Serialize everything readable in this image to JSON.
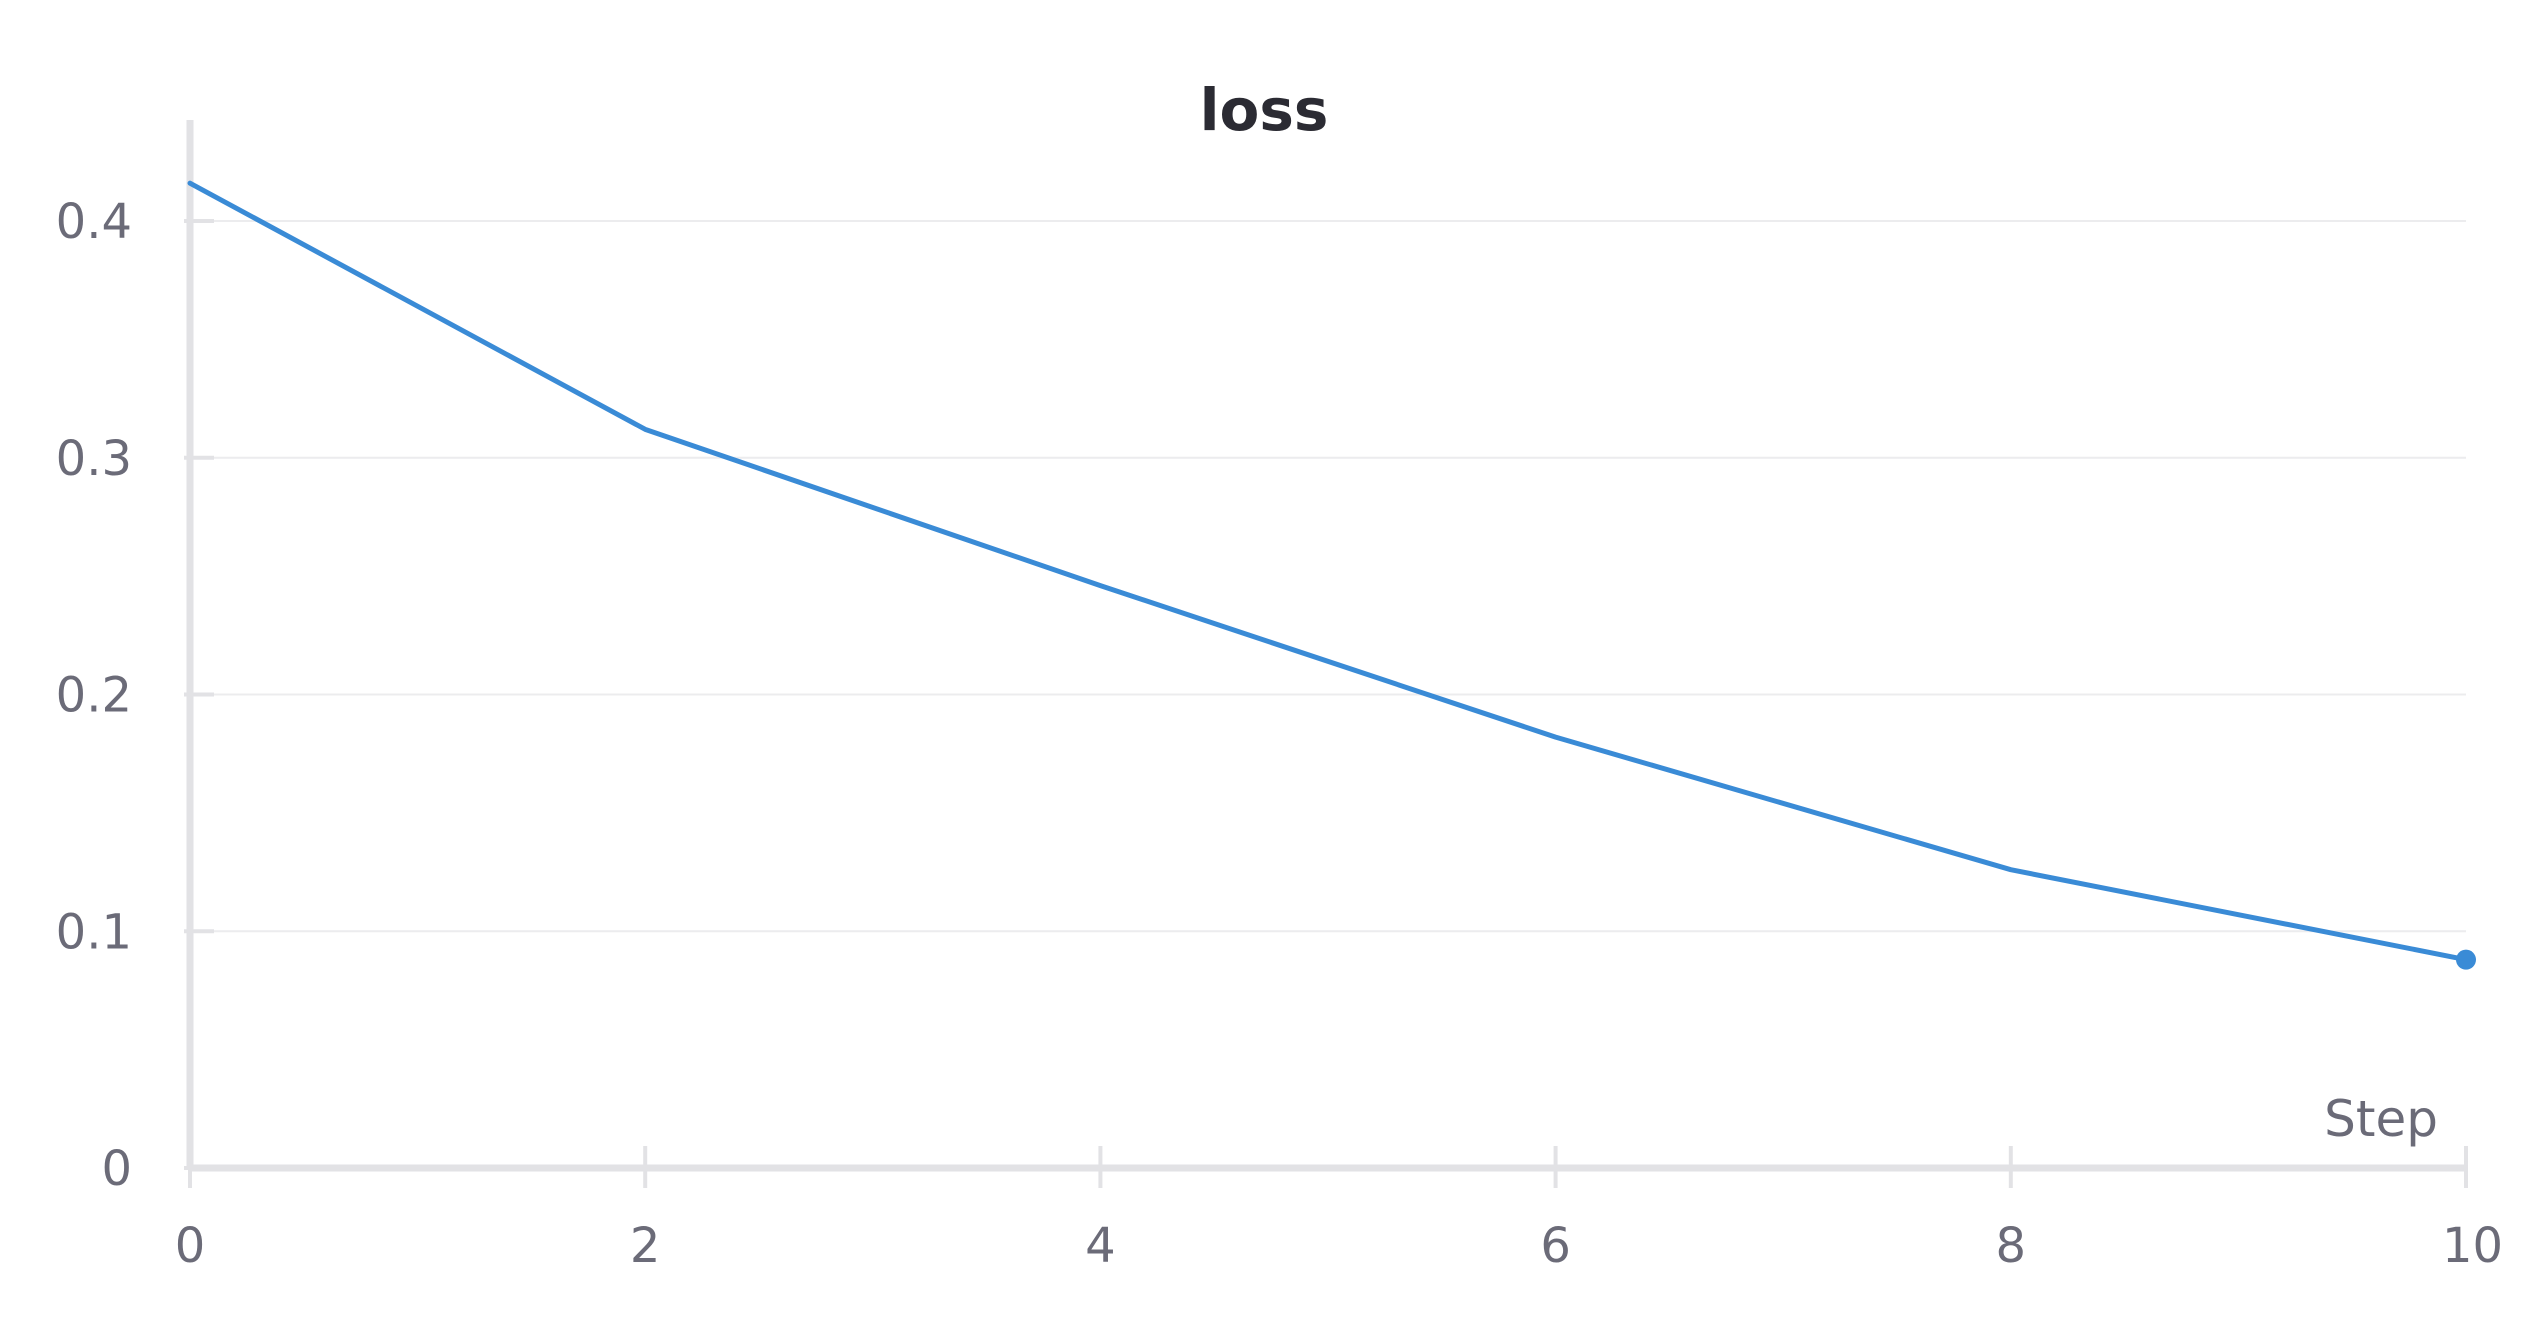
{
  "chart_data": {
    "type": "line",
    "title": "loss",
    "xlabel": "Step",
    "ylabel": "",
    "xlim": [
      0,
      10
    ],
    "ylim": [
      0,
      0.43
    ],
    "x_ticks": [
      0,
      2,
      4,
      6,
      8,
      10
    ],
    "x_tick_labels": [
      "0",
      "2",
      "4",
      "6",
      "8",
      "10"
    ],
    "y_ticks": [
      0,
      0.1,
      0.2,
      0.3,
      0.4
    ],
    "y_tick_labels": [
      "0",
      "0.1",
      "0.2",
      "0.3",
      "0.4"
    ],
    "grid": true,
    "legend": "none",
    "series": [
      {
        "color": "#3a8bd6",
        "x": [
          0,
          2,
          4,
          6,
          8,
          10
        ],
        "y": [
          0.416,
          0.312,
          0.246,
          0.182,
          0.126,
          0.088
        ],
        "end_marker": true
      }
    ]
  }
}
